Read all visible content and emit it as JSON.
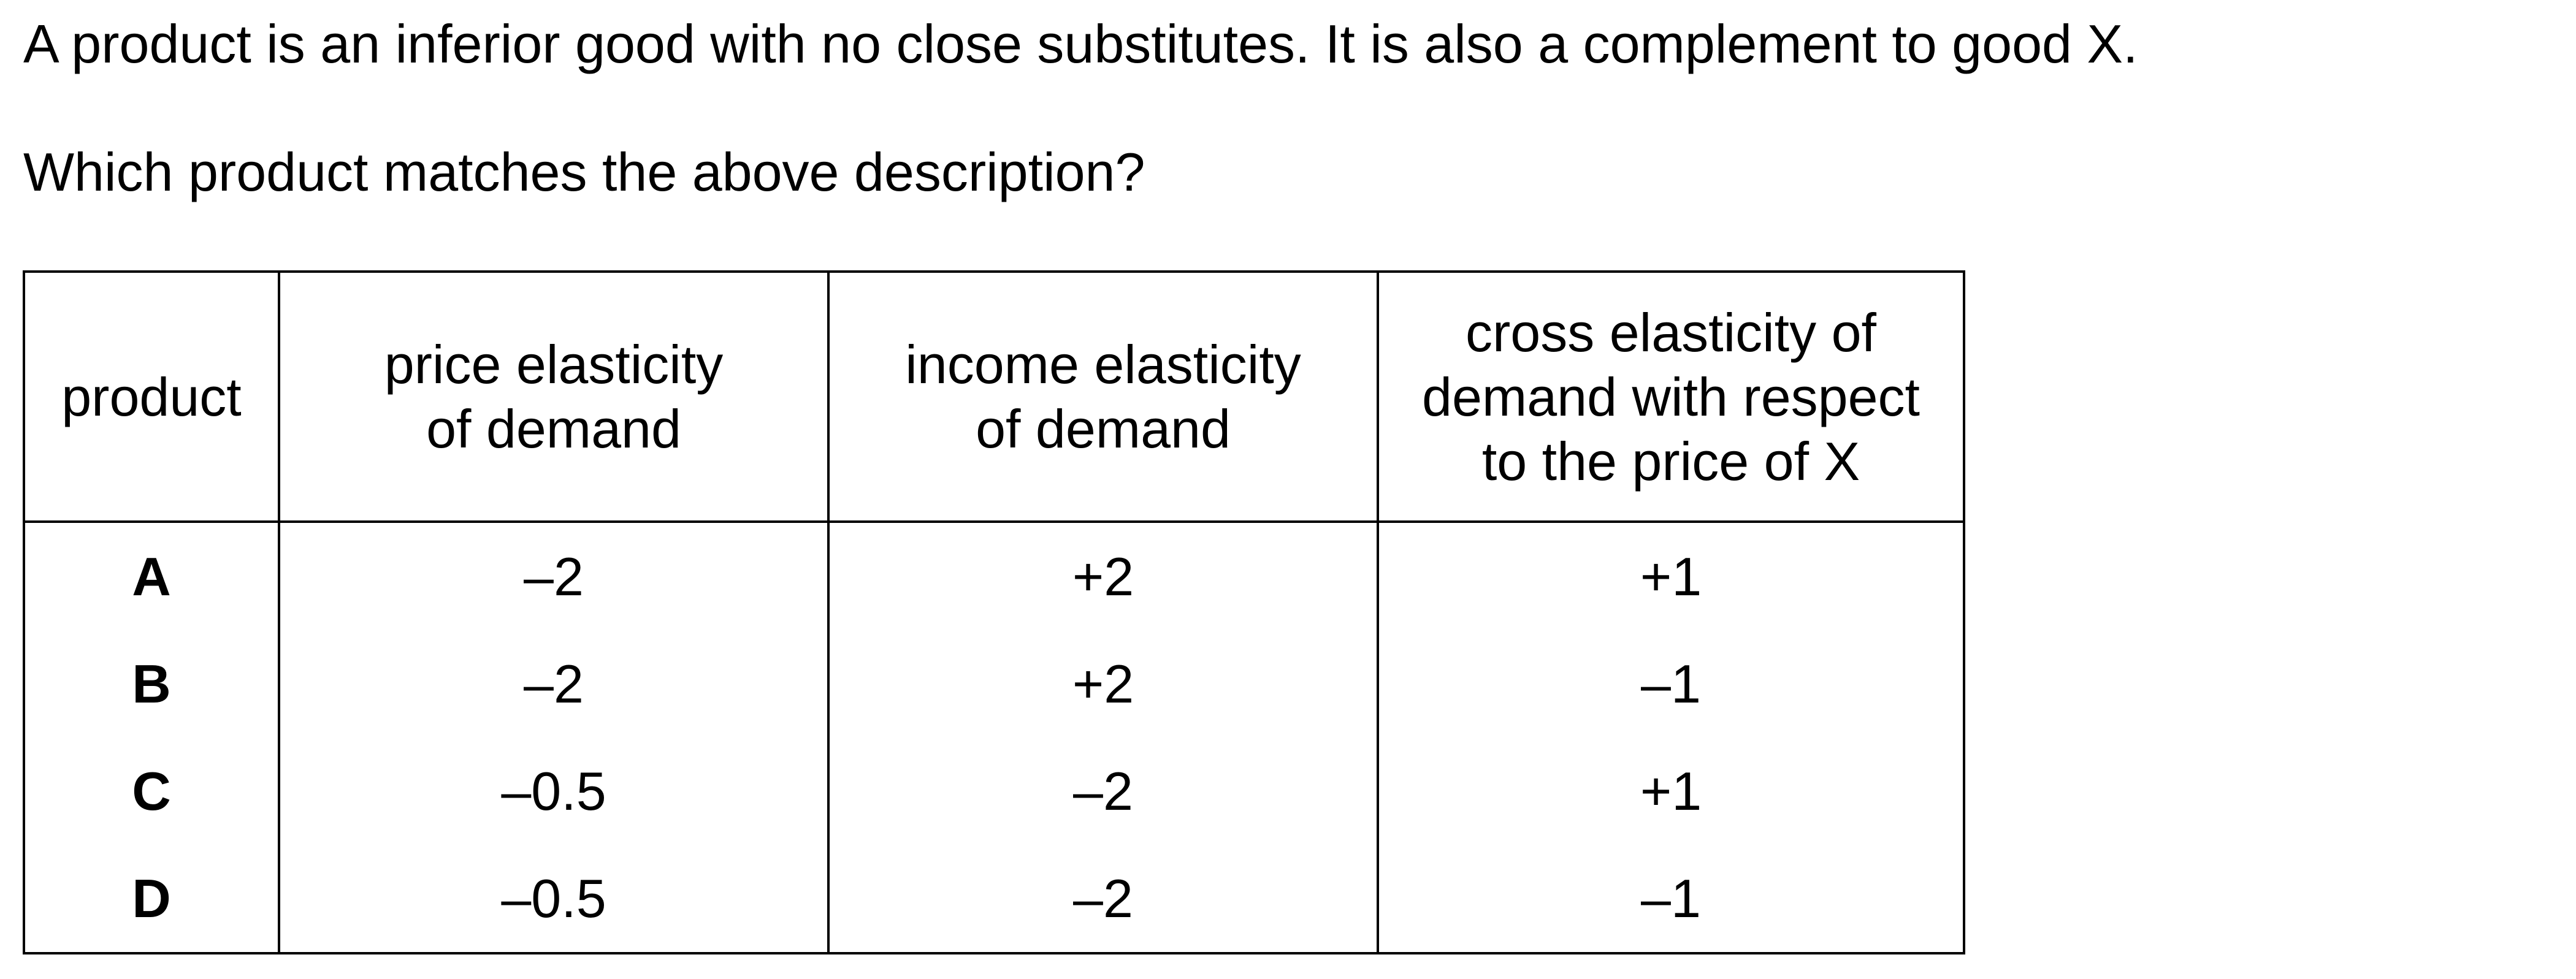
{
  "question": {
    "line1": "A product is an inferior good with no close substitutes. It is also a complement to good X.",
    "line2": "Which product matches the above description?"
  },
  "table": {
    "headers": [
      "product",
      "price elasticity\nof demand",
      "income elasticity\nof demand",
      "cross elasticity of\ndemand with respect\nto the price of X"
    ],
    "rows": [
      [
        "A",
        "–2",
        "+2",
        "+1"
      ],
      [
        "B",
        "–2",
        "+2",
        "–1"
      ],
      [
        "C",
        "–0.5",
        "–2",
        "+1"
      ],
      [
        "D",
        "–0.5",
        "–2",
        "–1"
      ]
    ]
  }
}
